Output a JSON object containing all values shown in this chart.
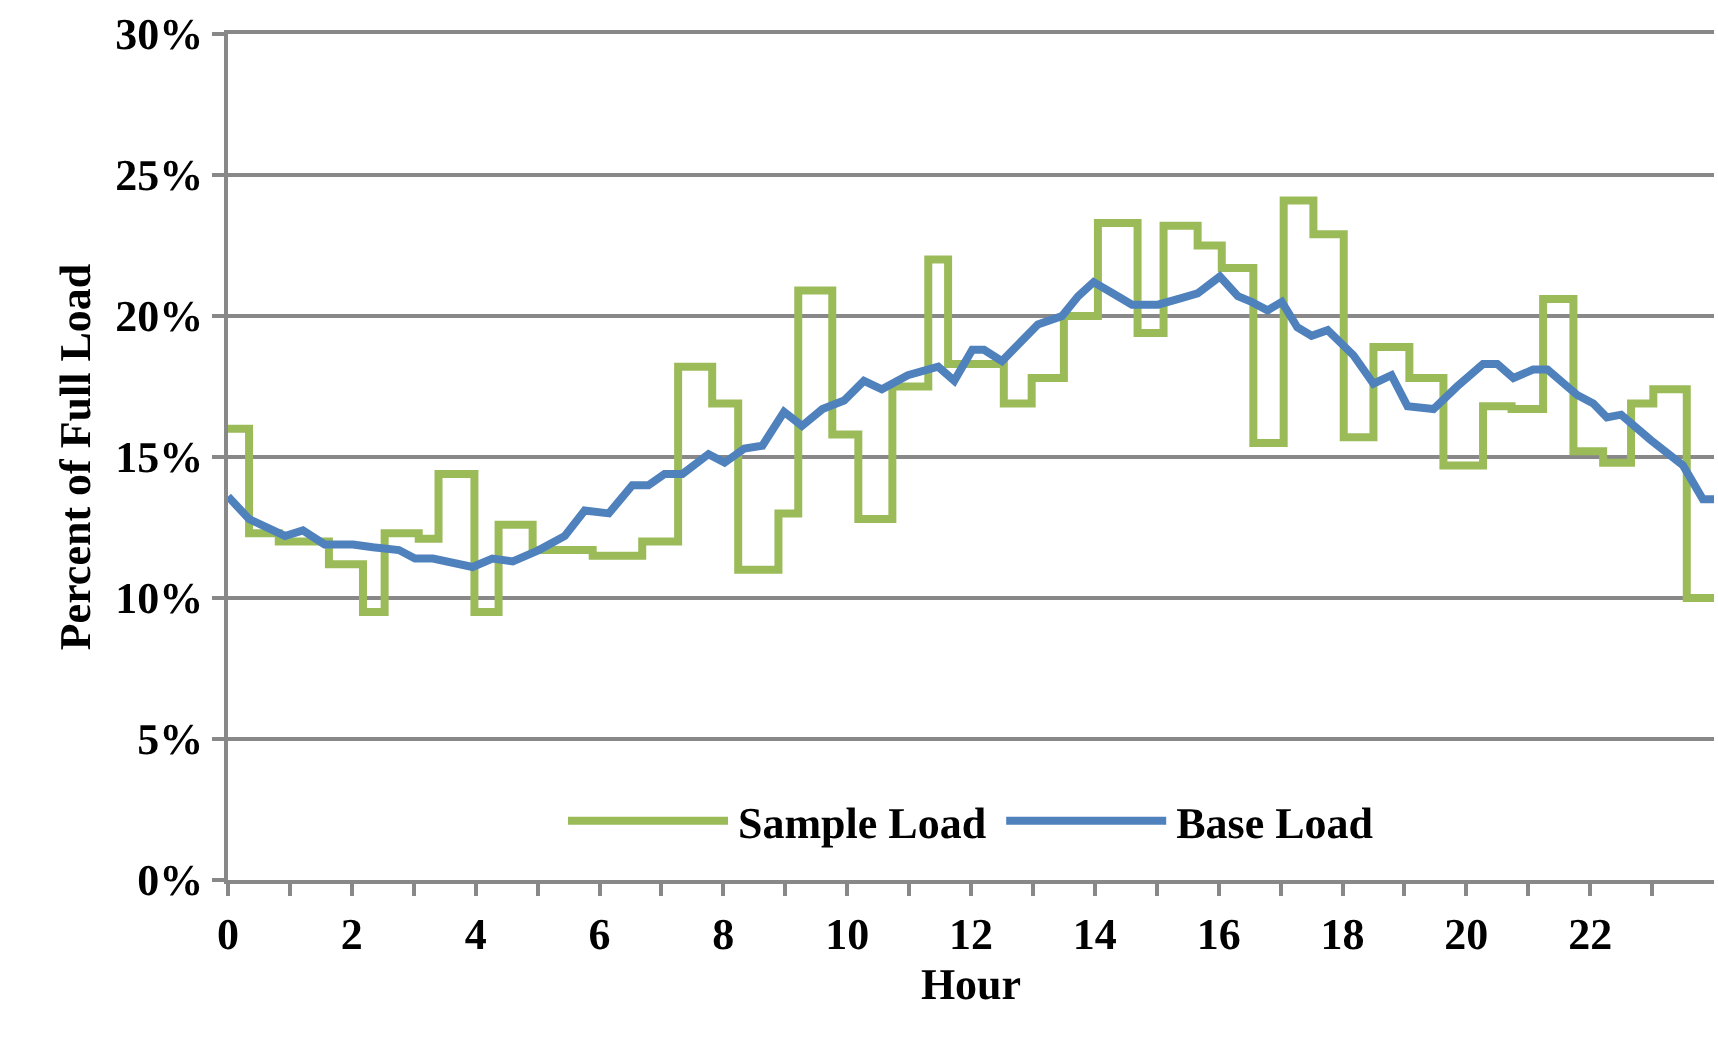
{
  "chart_data": {
    "type": "line",
    "xlabel": "Hour",
    "ylabel": "Percent of Full Load",
    "xlim": [
      0,
      24
    ],
    "xticks": [
      0,
      {
        "value": 1,
        "label": null
      },
      2,
      {
        "value": 3,
        "label": null
      },
      4,
      {
        "value": 5,
        "label": null
      },
      6,
      {
        "value": 7,
        "label": null
      },
      8,
      {
        "value": 9,
        "label": null
      },
      10,
      {
        "value": 11,
        "label": null
      },
      12,
      {
        "value": 13,
        "label": null
      },
      14,
      {
        "value": 15,
        "label": null
      },
      16,
      {
        "value": 17,
        "label": null
      },
      18,
      {
        "value": 19,
        "label": null
      },
      20,
      {
        "value": 21,
        "label": null
      },
      22,
      {
        "value": 23,
        "label": null
      }
    ],
    "ylim": [
      0,
      30
    ],
    "yticks": [
      {
        "value": 0,
        "label": "0%"
      },
      {
        "value": 5,
        "label": "5%"
      },
      {
        "value": 10,
        "label": "10%"
      },
      {
        "value": 15,
        "label": "15%"
      },
      {
        "value": 20,
        "label": "20%"
      },
      {
        "value": 25,
        "label": "25%"
      },
      {
        "value": 30,
        "label": "30%"
      }
    ],
    "grid": "y",
    "legend": "bottom",
    "marker": "none",
    "line_style": "solid",
    "series": [
      {
        "name": "Sample Load",
        "type": "step",
        "color": "#9bbb59",
        "x": [
          0,
          0.34,
          0.82,
          1.63,
          2.18,
          2.53,
          3.08,
          3.4,
          3.98,
          4.37,
          4.92,
          5.89,
          6.69,
          7.27,
          7.82,
          8.24,
          8.89,
          9.21,
          9.76,
          10.18,
          10.73,
          11.31,
          11.63,
          12.53,
          12.98,
          13.5,
          14.05,
          14.69,
          15.11,
          15.66,
          16.05,
          16.56,
          17.05,
          17.53,
          18.02,
          18.5,
          19.08,
          19.63,
          20.27,
          20.73,
          21.24,
          21.73,
          22.21,
          22.66,
          23.02,
          23.56,
          24
        ],
        "values": [
          16.0,
          12.3,
          12.0,
          11.2,
          9.5,
          12.3,
          12.1,
          14.4,
          9.5,
          12.6,
          11.7,
          11.5,
          12.0,
          18.2,
          16.9,
          11.0,
          13.0,
          20.9,
          15.8,
          12.8,
          17.5,
          22.0,
          18.3,
          16.9,
          17.8,
          20.0,
          23.3,
          19.4,
          23.2,
          22.5,
          21.7,
          15.5,
          24.1,
          22.9,
          15.7,
          18.9,
          17.8,
          14.7,
          16.8,
          16.7,
          20.6,
          15.2,
          14.8,
          16.9,
          17.4,
          10.0,
          10.0
        ]
      },
      {
        "name": "Base Load",
        "color": "#4f81bd",
        "x": [
          0,
          0.34,
          0.92,
          1.21,
          1.56,
          2.02,
          2.34,
          2.76,
          3.02,
          3.31,
          3.95,
          4.27,
          4.6,
          5.02,
          5.44,
          5.76,
          6.15,
          6.53,
          6.79,
          7.05,
          7.34,
          7.76,
          8.02,
          8.34,
          8.63,
          8.98,
          9.27,
          9.6,
          9.95,
          10.27,
          10.56,
          10.98,
          11.47,
          11.73,
          12.02,
          12.21,
          12.5,
          13.08,
          13.47,
          13.73,
          13.98,
          14.37,
          14.6,
          15.02,
          15.34,
          15.66,
          16.02,
          16.31,
          16.53,
          16.79,
          17.02,
          17.27,
          17.5,
          17.76,
          18.18,
          18.5,
          18.79,
          19.05,
          19.47,
          19.85,
          20.27,
          20.5,
          20.76,
          21.08,
          21.31,
          21.79,
          22.05,
          22.27,
          22.5,
          22.98,
          23.5,
          23.82,
          24
        ],
        "values": [
          13.6,
          12.8,
          12.2,
          12.4,
          11.9,
          11.9,
          11.8,
          11.7,
          11.4,
          11.4,
          11.1,
          11.4,
          11.3,
          11.7,
          12.2,
          13.1,
          13.0,
          14.0,
          14.0,
          14.4,
          14.4,
          15.1,
          14.8,
          15.3,
          15.4,
          16.6,
          16.1,
          16.7,
          17.0,
          17.7,
          17.4,
          17.9,
          18.2,
          17.7,
          18.8,
          18.8,
          18.4,
          19.7,
          20.0,
          20.7,
          21.2,
          20.7,
          20.4,
          20.4,
          20.6,
          20.8,
          21.4,
          20.7,
          20.5,
          20.2,
          20.5,
          19.6,
          19.3,
          19.5,
          18.6,
          17.6,
          17.9,
          16.8,
          16.7,
          17.5,
          18.3,
          18.3,
          17.8,
          18.1,
          18.1,
          17.2,
          16.9,
          16.4,
          16.5,
          15.6,
          14.7,
          13.5,
          13.5
        ]
      }
    ]
  }
}
